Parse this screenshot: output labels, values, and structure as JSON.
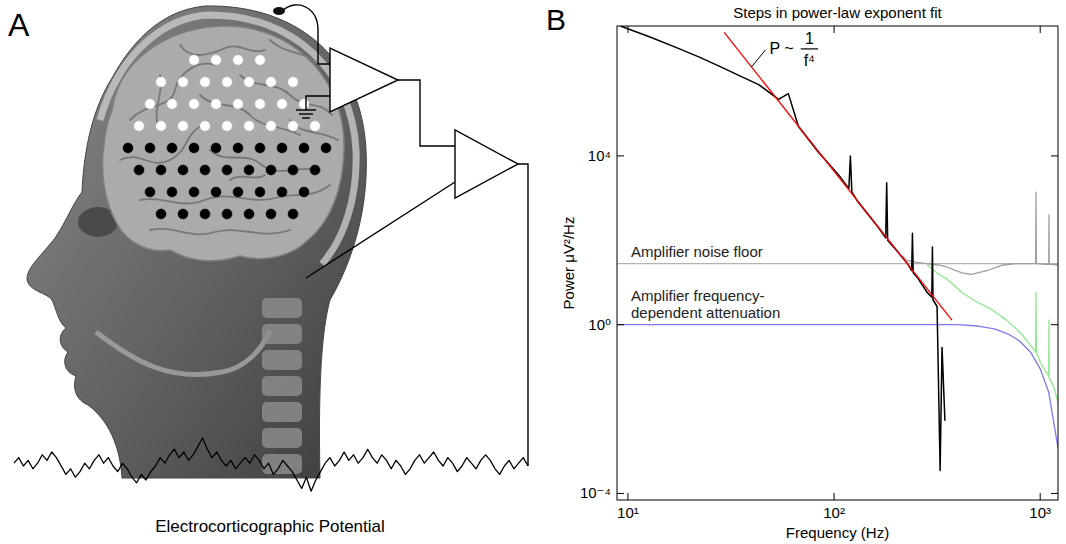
{
  "panel_a": {
    "label": "A",
    "caption": "Electrocorticographic Potential",
    "trace": [
      0.1,
      0.3,
      0.0,
      0.2,
      -0.1,
      0.1,
      0.4,
      0.2,
      0.5,
      0.3,
      0.0,
      -0.3,
      -0.1,
      -0.4,
      -0.2,
      0.1,
      -0.1,
      0.2,
      0.4,
      0.1,
      0.3,
      0.0,
      -0.2,
      0.1,
      -0.1,
      -0.4,
      -0.6,
      -0.3,
      -0.5,
      -0.2,
      0.0,
      0.3,
      0.1,
      0.4,
      0.6,
      0.3,
      0.5,
      0.2,
      0.4,
      0.7,
      1.0,
      0.6,
      0.3,
      0.5,
      0.2,
      0.0,
      0.2,
      -0.1,
      0.1,
      0.3,
      0.1,
      0.4,
      0.2,
      -0.1,
      0.1,
      -0.3,
      -0.1,
      0.2,
      0.0,
      -0.2,
      -0.5,
      -0.8,
      -0.4,
      -0.9,
      -0.5,
      -0.2,
      0.1,
      0.3,
      0.0,
      0.2,
      0.5,
      0.2,
      0.4,
      0.1,
      0.3,
      0.6,
      0.3,
      0.1,
      0.4,
      0.2,
      -0.1,
      0.2,
      0.0,
      -0.3,
      -0.1,
      0.2,
      0.4,
      0.1,
      0.3,
      0.5,
      0.2,
      0.0,
      0.3,
      0.1,
      -0.2,
      0.0,
      0.3,
      0.1,
      -0.1,
      0.2,
      0.4,
      0.2,
      -0.1,
      -0.3,
      0.0,
      0.2,
      -0.1,
      0.1,
      0.3,
      0.0
    ]
  },
  "chart_data": {
    "type": "line",
    "panel_label": "B",
    "title": "Steps in power-law exponent fit",
    "x_label": "Frequency (Hz)",
    "y_label": "Power μV²/Hz",
    "log": true,
    "xlim": [
      8.85,
      1220
    ],
    "ylim": [
      7e-05,
      12000000
    ],
    "xticks": [
      {
        "value": 10,
        "label": "10¹"
      },
      {
        "value": 100,
        "label": "10²"
      },
      {
        "value": 1000,
        "label": "10³"
      }
    ],
    "yticks": [
      {
        "value": 0.0001,
        "label": "10⁻⁴"
      },
      {
        "value": 1,
        "label": "10⁰"
      },
      {
        "value": 10000,
        "label": "10⁴"
      }
    ],
    "series": [
      {
        "name": "Amplifier noise floor",
        "color": "#b3b3b3",
        "x": [
          8.85,
          1220
        ],
        "values": [
          28,
          28
        ]
      },
      {
        "name": "Amplifier frequency-dependent attenuation",
        "color": "#7b7bf0",
        "x": [
          8.85,
          395,
          500,
          600,
          700,
          800,
          900,
          1000,
          1100,
          1220
        ],
        "values": [
          1,
          1,
          0.93,
          0.8,
          0.6,
          0.4,
          0.22,
          0.09,
          0.025,
          0.0012
        ]
      },
      {
        "color": "#9e9e9e",
        "x": [
          215,
          227,
          253,
          283,
          320,
          354,
          417,
          465,
          550,
          650,
          767,
          905,
          950,
          954,
          958,
          1066,
          1100,
          1103,
          1106,
          1140,
          1220
        ],
        "values": [
          42,
          33,
          30,
          28,
          26,
          23,
          17,
          15.5,
          19,
          25.6,
          28,
          28,
          28,
          1380,
          28,
          27,
          27,
          400,
          27,
          27,
          26
        ]
      },
      {
        "color": "#8ee88e",
        "x": [
          283,
          320,
          354,
          417,
          490,
          580,
          685,
          810,
          950,
          954,
          958,
          1010,
          1100,
          1103,
          1106,
          1160,
          1220
        ],
        "values": [
          26,
          16,
          12,
          5.8,
          3.5,
          2.3,
          1.3,
          0.61,
          0.23,
          5.8,
          0.22,
          0.117,
          0.06,
          1.3,
          0.055,
          0.035,
          0.0145
        ]
      },
      {
        "color": "#000000",
        "x": [
          9.2,
          12.8,
          17.8,
          22.2,
          27.7,
          34.5,
          43.1,
          53.8,
          60,
          67.2,
          83.8,
          104.5,
          118,
          120,
          122,
          130,
          163,
          178,
          180,
          182,
          203,
          227,
          238,
          240,
          242,
          253,
          283,
          298,
          300,
          302,
          316,
          327,
          334,
          345
        ],
        "values": [
          12000000,
          6600000,
          3450000,
          2200000,
          1340000,
          810000,
          490000,
          220000,
          300000,
          50000,
          12400,
          3700,
          1700,
          10000,
          1400,
          840,
          210,
          114,
          2300,
          100,
          54,
          28,
          19,
          147,
          17,
          13.4,
          5.8,
          4.5,
          69,
          3.9,
          2.7,
          0.00035,
          0.29,
          0.0053
        ]
      },
      {
        "color": "#ff0000",
        "x": [
          29.3,
          373
        ],
        "values": [
          8470000,
          1.29
        ]
      }
    ],
    "annotations": [
      {
        "text": "P ~",
        "numerator": "1",
        "denominator": "f⁴"
      }
    ]
  }
}
